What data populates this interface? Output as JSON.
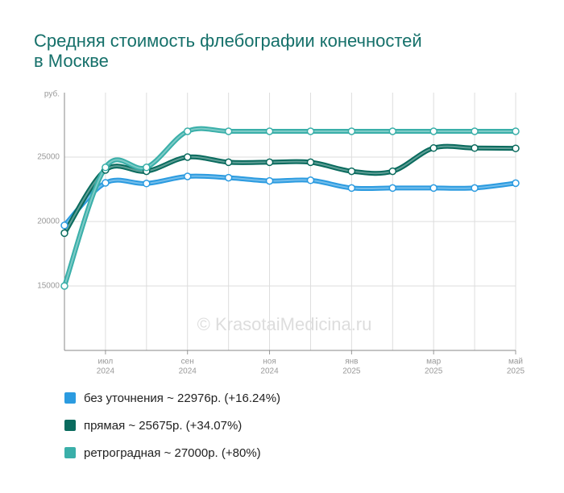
{
  "chart_data": {
    "type": "line",
    "title": [
      "Средняя стоимость флебографии конечностей",
      "в Москве"
    ],
    "y_unit": "руб.",
    "watermark": "© KrasotaiMedicina.ru",
    "categories": [
      null,
      [
        "июл",
        "2024"
      ],
      null,
      [
        "сен",
        "2024"
      ],
      null,
      [
        "ноя",
        "2024"
      ],
      null,
      [
        "янв",
        "2025"
      ],
      null,
      [
        "мар",
        "2025"
      ],
      null,
      [
        "май",
        "2025"
      ]
    ],
    "ylim": [
      10000,
      30000
    ],
    "yticks": [
      15000,
      20000,
      25000
    ],
    "grid": true,
    "series": [
      {
        "name": "без уточнения ~ 22976р. (+16.24%)",
        "color": "#2b9be0",
        "values": [
          19700,
          23000,
          22950,
          23500,
          23400,
          23150,
          23200,
          22600,
          22600,
          22600,
          22600,
          22976
        ]
      },
      {
        "name": "прямая ~ 25675р. (+34.07%)",
        "color": "#0a6b5e",
        "values": [
          19100,
          24000,
          23900,
          25000,
          24600,
          24600,
          24600,
          23900,
          23900,
          25700,
          25700,
          25675
        ]
      },
      {
        "name": "ретроградная ~ 27000р. (+80%)",
        "color": "#3aafa9",
        "values": [
          15000,
          24200,
          24200,
          27000,
          27000,
          27000,
          27000,
          27000,
          27000,
          27000,
          27000,
          27000
        ]
      }
    ]
  }
}
